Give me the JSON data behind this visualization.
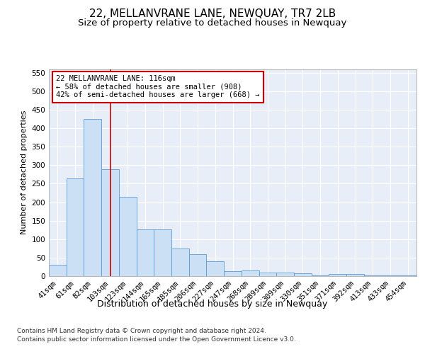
{
  "title": "22, MELLANVRANE LANE, NEWQUAY, TR7 2LB",
  "subtitle": "Size of property relative to detached houses in Newquay",
  "xlabel": "Distribution of detached houses by size in Newquay",
  "ylabel": "Number of detached properties",
  "categories": [
    "41sqm",
    "61sqm",
    "82sqm",
    "103sqm",
    "123sqm",
    "144sqm",
    "165sqm",
    "185sqm",
    "206sqm",
    "227sqm",
    "247sqm",
    "268sqm",
    "289sqm",
    "309sqm",
    "330sqm",
    "351sqm",
    "371sqm",
    "392sqm",
    "413sqm",
    "433sqm",
    "454sqm"
  ],
  "values": [
    30,
    265,
    425,
    290,
    215,
    127,
    127,
    75,
    60,
    40,
    13,
    16,
    10,
    10,
    8,
    2,
    5,
    5,
    2,
    2,
    2
  ],
  "bar_color": "#cce0f5",
  "bar_edge_color": "#5b9bd5",
  "ref_line_x": 3.0,
  "ref_line_color": "#cc0000",
  "ylim": [
    0,
    560
  ],
  "yticks": [
    0,
    50,
    100,
    150,
    200,
    250,
    300,
    350,
    400,
    450,
    500,
    550
  ],
  "annotation_text": "22 MELLANVRANE LANE: 116sqm\n← 58% of detached houses are smaller (908)\n42% of semi-detached houses are larger (668) →",
  "annotation_box_color": "#ffffff",
  "annotation_box_edge": "#cc0000",
  "footer_line1": "Contains HM Land Registry data © Crown copyright and database right 2024.",
  "footer_line2": "Contains public sector information licensed under the Open Government Licence v3.0.",
  "background_color": "#e8eef7",
  "grid_color": "#ffffff",
  "title_fontsize": 11,
  "subtitle_fontsize": 9.5,
  "xlabel_fontsize": 9,
  "ylabel_fontsize": 8,
  "tick_fontsize": 7.5,
  "annotation_fontsize": 7.5,
  "footer_fontsize": 6.5
}
